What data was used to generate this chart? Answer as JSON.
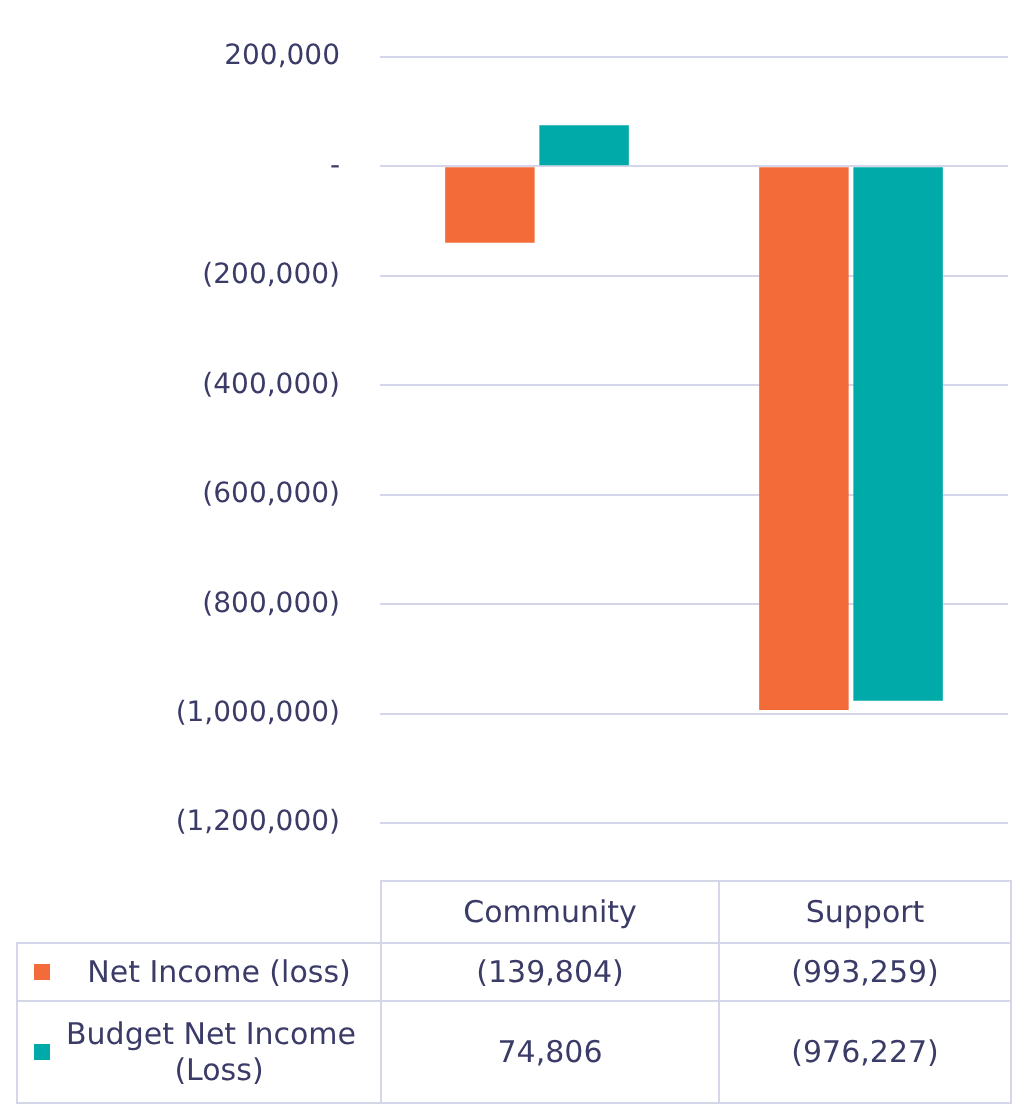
{
  "chart_data": {
    "type": "bar",
    "categories": [
      "Community",
      "Support"
    ],
    "series": [
      {
        "name": "Net Income (loss)",
        "color": "#f26b38",
        "values": [
          -139804,
          -993259
        ],
        "value_labels": [
          "(139,804)",
          "(993,259)"
        ]
      },
      {
        "name": "Budget Net Income (Loss)",
        "color": "#00aaa9",
        "values": [
          74806,
          -976227
        ],
        "value_labels": [
          "74,806",
          "(976,227)"
        ]
      }
    ],
    "ylim": [
      -1200000,
      200000
    ],
    "yticks": [
      {
        "value": 200000,
        "label": "200,000"
      },
      {
        "value": 0,
        "label": "-"
      },
      {
        "value": -200000,
        "label": "(200,000)"
      },
      {
        "value": -400000,
        "label": "(400,000)"
      },
      {
        "value": -600000,
        "label": "(600,000)"
      },
      {
        "value": -800000,
        "label": "(800,000)"
      },
      {
        "value": -1000000,
        "label": "(1,000,000)"
      },
      {
        "value": -1200000,
        "label": "(1,200,000)"
      }
    ],
    "grid": "y",
    "legend": "bottom"
  }
}
